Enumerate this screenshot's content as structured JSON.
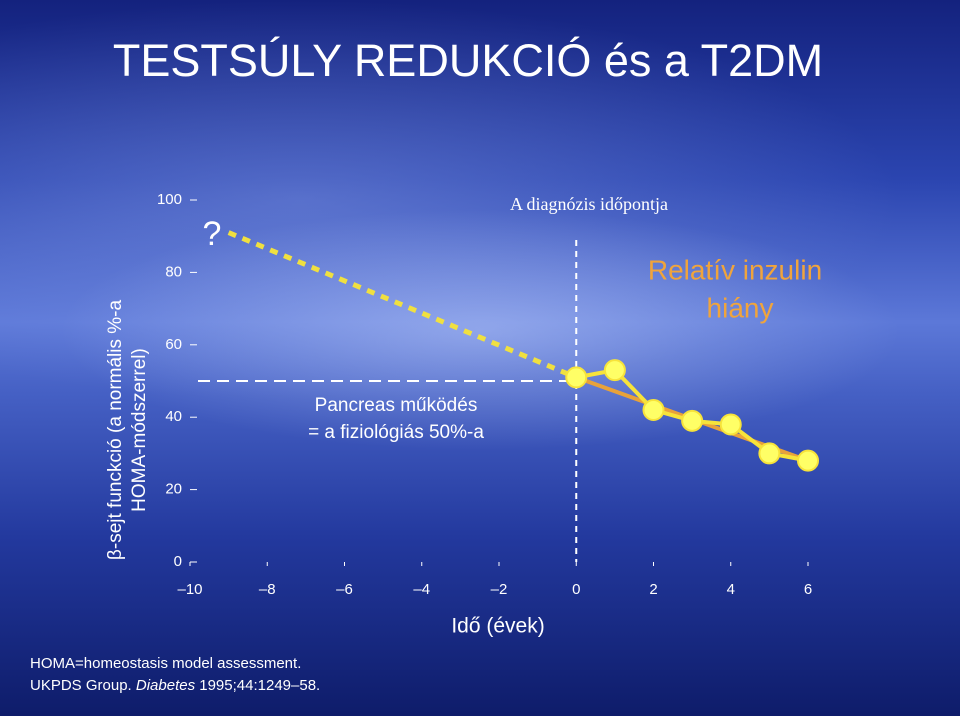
{
  "chart_data": {
    "type": "line",
    "title": "TESTSÚLY REDUKCIÓ és a T2DM",
    "x_label": "Idő (évek)",
    "y_label": [
      "β-sejt funckció (a normális %-a",
      "HOMA-módszerrel)"
    ],
    "x": [
      0,
      1,
      2,
      3,
      4,
      5,
      6
    ],
    "values": [
      51,
      53,
      42,
      39,
      38,
      30,
      28
    ],
    "color": "#f7e33a",
    "marker_color": "#ffff66",
    "trend": {
      "x": [
        0,
        6
      ],
      "values": [
        51,
        28
      ],
      "color": "#e8a23a"
    },
    "projection": {
      "x": [
        -9,
        0
      ],
      "values": [
        91,
        51
      ],
      "color": "#f0e040"
    },
    "question": "?",
    "threshold": 50,
    "threshold_label": [
      "Pancreas működés",
      "= a fiziológiás 50%-a"
    ],
    "diagnosis_x": 0,
    "diagnosis_label": "A diagnózis időpontja",
    "deficit_label": [
      "Relatív inzulin",
      "hiány"
    ],
    "deficit_color": "#f0a43c",
    "xlim": [
      -10,
      6
    ],
    "ylim": [
      0,
      100
    ],
    "xticks": [
      {
        "value": -10,
        "label": "–10"
      },
      {
        "value": -8,
        "label": "–8"
      },
      {
        "value": -6,
        "label": "–6"
      },
      {
        "value": -4,
        "label": "–4"
      },
      {
        "value": -2,
        "label": "–2"
      },
      0,
      2,
      4,
      6
    ],
    "yticks": [
      0,
      20,
      40,
      60,
      80,
      100
    ],
    "footnote": "HOMA=homeostasis model assessment.",
    "citation": {
      "authors": "UKPDS Group. ",
      "journal": "Diabetes",
      "details": " 1995;44:1249–58."
    }
  }
}
